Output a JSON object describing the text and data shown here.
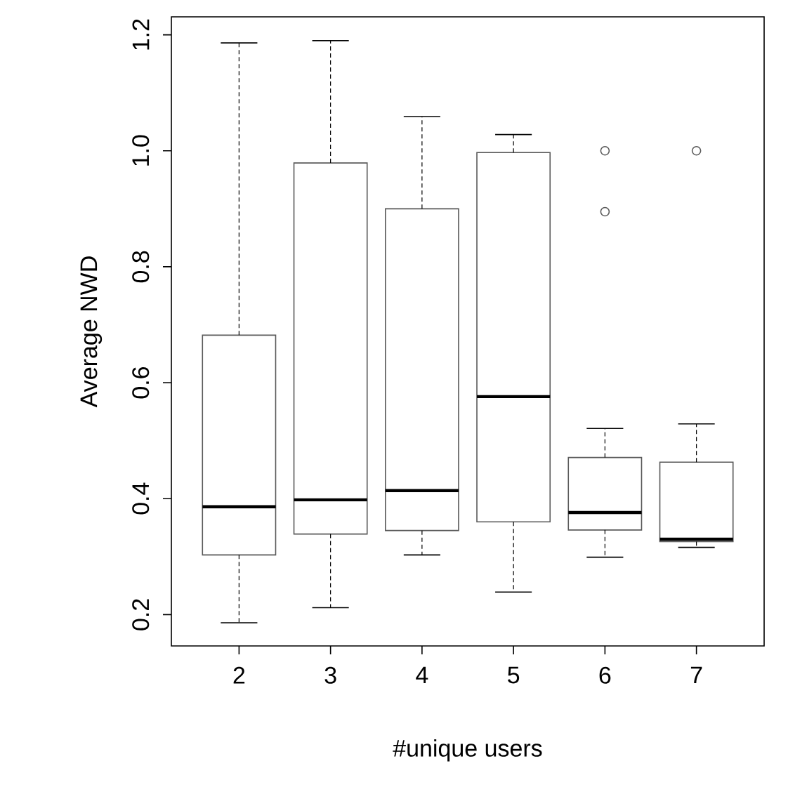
{
  "chart_data": {
    "type": "box",
    "xlabel": "#unique users",
    "ylabel": "Average NWD",
    "categories": [
      "2",
      "3",
      "4",
      "5",
      "6",
      "7"
    ],
    "boxes": [
      {
        "low": 0.186,
        "q1": 0.303,
        "median": 0.386,
        "q3": 0.682,
        "high": 1.186
      },
      {
        "low": 0.212,
        "q1": 0.339,
        "median": 0.398,
        "q3": 0.979,
        "high": 1.19
      },
      {
        "low": 0.303,
        "q1": 0.345,
        "median": 0.414,
        "q3": 0.9,
        "high": 1.059
      },
      {
        "low": 0.239,
        "q1": 0.36,
        "median": 0.576,
        "q3": 0.997,
        "high": 1.028
      },
      {
        "low": 0.299,
        "q1": 0.346,
        "median": 0.376,
        "q3": 0.471,
        "high": 0.521,
        "outliers": [
          1.0,
          0.895
        ]
      },
      {
        "low": 0.316,
        "q1": 0.326,
        "median": 0.33,
        "q3": 0.463,
        "high": 0.529,
        "outliers": [
          1.0
        ]
      }
    ],
    "ylim": [
      0.146,
      1.231
    ],
    "yticks": [
      0.2,
      0.4,
      0.6,
      0.8,
      {
        "value": 1,
        "label": "1.0"
      },
      1.2
    ],
    "marker": "circle",
    "line_style": "dashed"
  }
}
